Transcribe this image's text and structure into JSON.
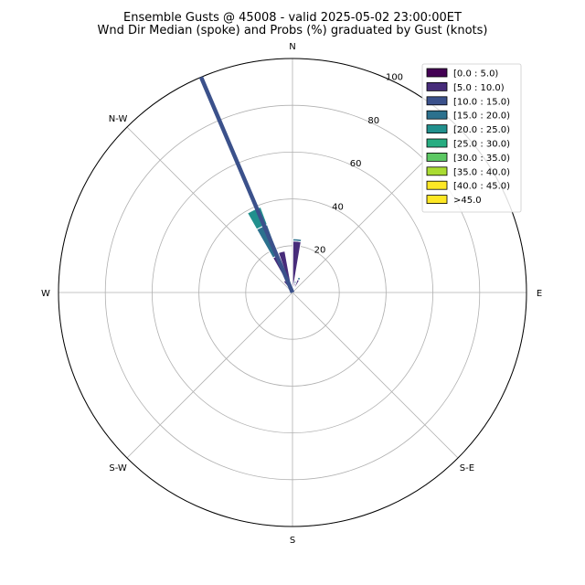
{
  "chart_data": {
    "type": "windrose",
    "title": "Ensemble Gusts @ 45008 - valid 2025-05-02 23:00:00ET",
    "subtitle": "Wnd Dir Median (spoke) and Probs (%) graduated by Gust (knots)",
    "directions": [
      "N",
      "N-W",
      "W",
      "S-W",
      "S",
      "S-E",
      "E"
    ],
    "radial_ticks": [
      "20",
      "40",
      "60",
      "80",
      "100"
    ],
    "rlim": [
      0,
      100
    ],
    "grid": true,
    "legend_position": "top-right",
    "bins": [
      {
        "label": "[0.0 : 5.0)",
        "color": "#440154"
      },
      {
        "label": "[5.0 : 10.0)",
        "color": "#472c7a"
      },
      {
        "label": "[10.0 : 15.0)",
        "color": "#3b518b"
      },
      {
        "label": "[15.0 : 20.0)",
        "color": "#2c718e"
      },
      {
        "label": "[20.0 : 25.0)",
        "color": "#21908d"
      },
      {
        "label": "[25.0 : 30.0)",
        "color": "#27ad81"
      },
      {
        "label": "[30.0 : 35.0)",
        "color": "#5cc863"
      },
      {
        "label": "[35.0 : 40.0)",
        "color": "#aadc32"
      },
      {
        "label": "[40.0 : 45.0)",
        "color": "#fde725"
      },
      {
        "label": ">45.0",
        "color": "#fde725"
      }
    ],
    "sectors": [
      {
        "direction_deg": 5,
        "segments": [
          {
            "bin": 1,
            "value": 22
          },
          {
            "bin": 3,
            "value": 1
          }
        ]
      },
      {
        "direction_deg": 15,
        "segments": [
          {
            "bin": 1,
            "value": 4
          },
          {
            "bin": 3,
            "value": 1
          }
        ]
      },
      {
        "direction_deg": 25,
        "segments": [
          {
            "bin": 1,
            "value": 6
          },
          {
            "bin": 3,
            "value": 1
          }
        ]
      },
      {
        "direction_deg": 345,
        "segments": [
          {
            "bin": 1,
            "value": 18
          }
        ]
      },
      {
        "direction_deg": 335,
        "segments": [
          {
            "bin": 1,
            "value": 17
          },
          {
            "bin": 3,
            "value": 14
          },
          {
            "bin": 4,
            "value": 8
          }
        ]
      },
      {
        "direction_deg": 325,
        "segments": [
          {
            "bin": 1,
            "value": 6
          }
        ]
      }
    ],
    "median_spoke": {
      "direction_deg": 337,
      "value": 100,
      "color": "#3b518b"
    }
  }
}
